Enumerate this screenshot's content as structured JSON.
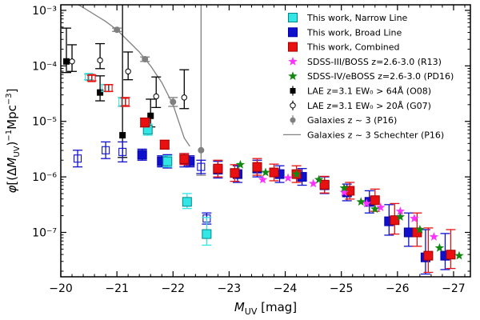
{
  "chart_data": {
    "type": "scatter",
    "xlabel": "M_UV [mag]",
    "ylabel": "φ[(ΔM_UV)^-1 Mpc^-3]",
    "xlim": [
      -20,
      -27.3
    ],
    "ylim_log10": [
      -7.8,
      -2.9
    ],
    "y_scale": "log",
    "grid": false,
    "legend_position": "top-right",
    "x_ticks": [
      {
        "v": -20,
        "label": "−20"
      },
      {
        "v": -21,
        "label": "−21"
      },
      {
        "v": -22,
        "label": "−22"
      },
      {
        "v": -23,
        "label": "−23"
      },
      {
        "v": -24,
        "label": "−24"
      },
      {
        "v": -25,
        "label": "−25"
      },
      {
        "v": -26,
        "label": "−26"
      },
      {
        "v": -27,
        "label": "−27"
      }
    ],
    "y_ticks": [
      {
        "v": -3,
        "label": "10⁻³"
      },
      {
        "v": -4,
        "label": "10⁻⁴"
      },
      {
        "v": -5,
        "label": "10⁻⁵"
      },
      {
        "v": -6,
        "label": "10⁻⁶"
      },
      {
        "v": -7,
        "label": "10⁻⁷"
      }
    ],
    "series": [
      {
        "name": "Galaxies z ~ 3 Schechter (P16)",
        "kind": "line",
        "color": "#808080",
        "points": [
          [
            -20.0,
            -2.72
          ],
          [
            -20.4,
            -2.95
          ],
          [
            -20.8,
            -3.2
          ],
          [
            -21.0,
            -3.35
          ],
          [
            -21.2,
            -3.55
          ],
          [
            -21.4,
            -3.75
          ],
          [
            -21.6,
            -4.0
          ],
          [
            -21.8,
            -4.3
          ],
          [
            -22.0,
            -4.7
          ],
          [
            -22.2,
            -5.3
          ],
          [
            -22.3,
            -5.45
          ]
        ]
      },
      {
        "name": "Galaxies z ~ 3 (P16)",
        "kind": "errorbar",
        "marker": "circle",
        "filled": true,
        "color": "#808080",
        "points": [
          [
            -20.5,
            -2.82,
            0.03,
            0.03
          ],
          [
            -21.0,
            -3.35,
            0.03,
            0.03
          ],
          [
            -21.5,
            -3.88,
            0.04,
            0.04
          ],
          [
            -22.0,
            -4.65,
            0.08,
            0.08
          ],
          [
            -22.5,
            -5.52,
            0.45,
            3.0
          ]
        ]
      },
      {
        "name": "LAE z=3.1 EW₀ > 64Å (O08)",
        "kind": "errorbar",
        "marker": "square",
        "filled": true,
        "color": "#000000",
        "points": [
          [
            -20.1,
            -3.92,
            0.2,
            0.6
          ],
          [
            -20.7,
            -4.48,
            0.15,
            0.3
          ],
          [
            -21.1,
            -5.25,
            0.4,
            3.5
          ],
          [
            -21.6,
            -4.9,
            0.2,
            0.3
          ]
        ]
      },
      {
        "name": "LAE z=3.1 EW₀ > 20Å (G07)",
        "kind": "errorbar",
        "marker": "circle",
        "filled": false,
        "color": "#000000",
        "points": [
          [
            -20.2,
            -3.92,
            0.18,
            0.3
          ],
          [
            -20.7,
            -3.9,
            0.15,
            0.3
          ],
          [
            -21.2,
            -4.1,
            0.15,
            0.35
          ],
          [
            -21.7,
            -4.55,
            0.2,
            0.35
          ],
          [
            -22.2,
            -4.57,
            0.2,
            0.5
          ]
        ]
      },
      {
        "name": "This work, Broad Line",
        "kind": "errorbar",
        "marker": "square",
        "filled": true,
        "color": "#1010cc",
        "edge": "#0000aa",
        "hollow_points": [
          [
            -20.3,
            -5.67,
            0.15,
            0.15
          ],
          [
            -20.8,
            -5.52,
            0.15,
            0.15
          ],
          [
            -21.1,
            -5.55,
            0.18,
            0.18
          ],
          [
            -21.9,
            -5.72,
            0.12,
            0.12
          ],
          [
            -22.2,
            -5.7,
            0.12,
            0.12
          ],
          [
            -22.5,
            -5.82,
            0.12,
            0.12
          ],
          [
            -22.6,
            -6.75,
            0.1,
            0.1
          ]
        ],
        "points": [
          [
            -21.45,
            -5.6,
            0.1,
            0.1
          ],
          [
            -21.8,
            -5.72,
            0.1,
            0.1
          ],
          [
            -22.3,
            -5.72,
            0.1,
            0.1
          ],
          [
            -22.8,
            -5.87,
            0.15,
            0.15
          ],
          [
            -23.15,
            -5.95,
            0.15,
            0.15
          ],
          [
            -23.5,
            -5.85,
            0.15,
            0.15
          ],
          [
            -23.9,
            -5.95,
            0.15,
            0.15
          ],
          [
            -24.3,
            -6.0,
            0.15,
            0.15
          ],
          [
            -24.7,
            -6.15,
            0.15,
            0.15
          ],
          [
            -25.1,
            -6.28,
            0.15,
            0.15
          ],
          [
            -25.5,
            -6.45,
            0.2,
            0.2
          ],
          [
            -25.85,
            -6.8,
            0.25,
            0.3
          ],
          [
            -26.2,
            -7.0,
            0.25,
            0.35
          ],
          [
            -26.5,
            -7.45,
            0.3,
            0.5
          ],
          [
            -26.85,
            -7.42,
            0.25,
            0.4
          ]
        ]
      },
      {
        "name": "This work, Narrow Line",
        "kind": "errorbar",
        "marker": "square",
        "filled": true,
        "color": "#33e6e6",
        "edge": "#008888",
        "hollow_points": [
          [
            -20.5,
            -4.2,
            0.05,
            0.05
          ],
          [
            -20.8,
            -4.4,
            0.06,
            0.06
          ],
          [
            -21.1,
            -4.65,
            0.08,
            0.08
          ]
        ],
        "points": [
          [
            -21.55,
            -5.15,
            0.1,
            0.1
          ],
          [
            -21.9,
            -5.72,
            0.1,
            0.1
          ],
          [
            -22.25,
            -6.45,
            0.12,
            0.15
          ],
          [
            -22.6,
            -7.03,
            0.2,
            0.3
          ]
        ]
      },
      {
        "name": "This work, Combined",
        "kind": "errorbar",
        "marker": "square",
        "filled": true,
        "color": "#e81010",
        "edge": "#aa0000",
        "hollow_points": [
          [
            -20.55,
            -4.22,
            0.05,
            0.05
          ],
          [
            -20.85,
            -4.4,
            0.06,
            0.06
          ],
          [
            -21.15,
            -4.65,
            0.08,
            0.08
          ]
        ],
        "points": [
          [
            -21.5,
            -5.02,
            0.08,
            0.08
          ],
          [
            -21.85,
            -5.42,
            0.08,
            0.08
          ],
          [
            -22.2,
            -5.68,
            0.1,
            0.1
          ],
          [
            -22.8,
            -5.85,
            0.15,
            0.15
          ],
          [
            -23.1,
            -5.93,
            0.15,
            0.15
          ],
          [
            -23.5,
            -5.82,
            0.15,
            0.15
          ],
          [
            -23.8,
            -5.92,
            0.15,
            0.15
          ],
          [
            -24.2,
            -5.95,
            0.15,
            0.15
          ],
          [
            -24.7,
            -6.14,
            0.15,
            0.15
          ],
          [
            -25.15,
            -6.25,
            0.15,
            0.15
          ],
          [
            -25.6,
            -6.42,
            0.2,
            0.2
          ],
          [
            -25.95,
            -6.78,
            0.25,
            0.3
          ],
          [
            -26.35,
            -7.0,
            0.25,
            0.35
          ],
          [
            -26.55,
            -7.42,
            0.3,
            0.5
          ],
          [
            -26.95,
            -7.4,
            0.25,
            0.45
          ]
        ]
      },
      {
        "name": "SDSS-III/BOSS z=2.6-3.0 (R13)",
        "kind": "scatter",
        "marker": "star",
        "color": "#ff33ff",
        "points": [
          [
            -23.6,
            -6.05
          ],
          [
            -24.05,
            -6.02
          ],
          [
            -24.5,
            -6.12
          ],
          [
            -25.05,
            -6.28
          ],
          [
            -25.45,
            -6.48
          ],
          [
            -25.7,
            -6.55
          ],
          [
            -26.05,
            -6.62
          ],
          [
            -26.3,
            -6.75
          ],
          [
            -26.65,
            -7.08
          ]
        ]
      },
      {
        "name": "SDSS-IV/eBOSS z=2.6-3.0 (PD16)",
        "kind": "scatter",
        "marker": "star",
        "color": "#118811",
        "points": [
          [
            -23.2,
            -5.78
          ],
          [
            -23.65,
            -5.92
          ],
          [
            -24.2,
            -5.95
          ],
          [
            -24.6,
            -6.05
          ],
          [
            -25.05,
            -6.2
          ],
          [
            -25.35,
            -6.45
          ],
          [
            -25.6,
            -6.58
          ],
          [
            -26.05,
            -6.72
          ],
          [
            -26.4,
            -6.95
          ],
          [
            -26.75,
            -7.28
          ],
          [
            -27.1,
            -7.42
          ]
        ]
      }
    ],
    "legend": [
      {
        "label": "This work, Narrow Line",
        "marker": "square",
        "color": "#33e6e6",
        "edge": "#008888"
      },
      {
        "label": "This work, Broad Line",
        "marker": "square",
        "color": "#1010cc",
        "edge": "#0000aa"
      },
      {
        "label": "This work, Combined",
        "marker": "square",
        "color": "#e81010",
        "edge": "#aa0000"
      },
      {
        "label": "SDSS-III/BOSS z=2.6-3.0 (R13)",
        "marker": "star",
        "color": "#ff33ff"
      },
      {
        "label": "SDSS-IV/eBOSS z=2.6-3.0 (PD16)",
        "marker": "star",
        "color": "#118811"
      },
      {
        "label": "LAE z=3.1 EW₀ > 64Å (O08)",
        "marker": "square-small",
        "color": "#000000"
      },
      {
        "label": "LAE z=3.1 EW₀ > 20Å (G07)",
        "marker": "circle-open",
        "color": "#000000"
      },
      {
        "label": "Galaxies z ~ 3 (P16)",
        "marker": "circle",
        "color": "#808080"
      },
      {
        "label": "Galaxies z ~ 3 Schechter (P16)",
        "marker": "line",
        "color": "#808080"
      }
    ]
  }
}
